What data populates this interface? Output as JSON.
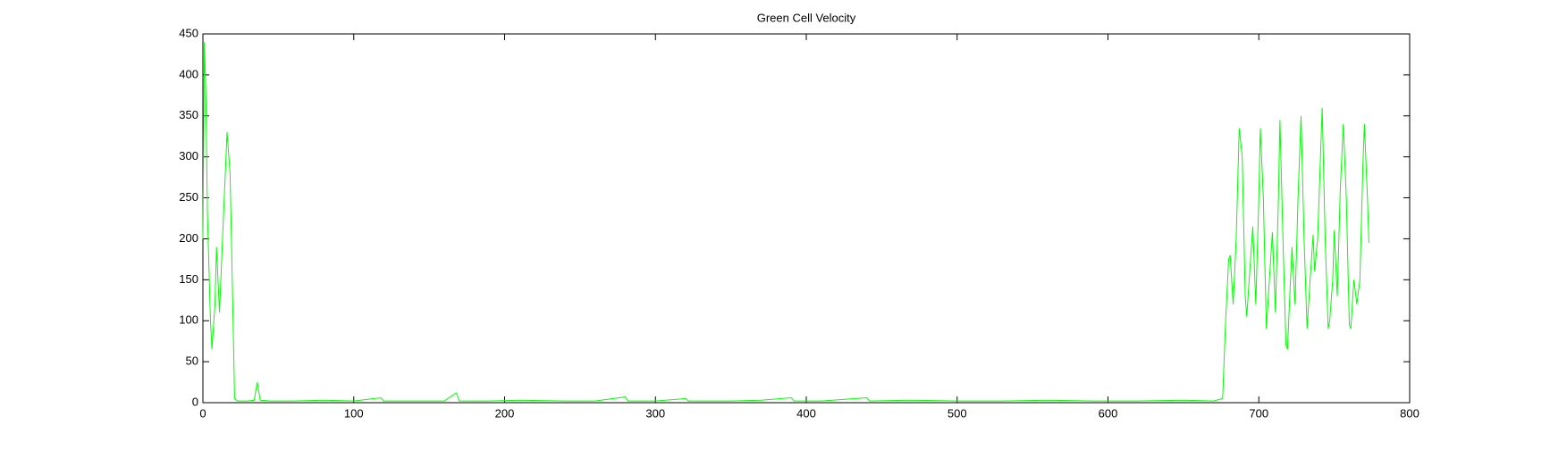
{
  "chart_data": {
    "type": "line",
    "title": "Green Cell Velocity",
    "x": [
      0,
      1,
      2,
      3,
      5,
      6,
      8,
      9,
      11,
      13,
      16,
      18,
      20,
      21,
      23,
      30,
      34,
      36,
      38,
      45,
      60,
      80,
      100,
      118,
      120,
      140,
      160,
      168,
      170,
      190,
      210,
      240,
      260,
      280,
      282,
      300,
      320,
      322,
      350,
      370,
      390,
      392,
      410,
      440,
      442,
      470,
      500,
      530,
      560,
      590,
      620,
      650,
      670,
      676,
      678,
      680,
      681,
      683,
      685,
      687,
      689,
      691,
      692,
      694,
      696,
      698,
      700,
      701,
      703,
      705,
      707,
      709,
      711,
      713,
      714,
      716,
      718,
      719,
      721,
      722,
      724,
      726,
      728,
      730,
      732,
      734,
      736,
      737,
      739,
      742,
      744,
      746,
      747,
      749,
      750,
      752,
      754,
      756,
      758,
      760,
      761,
      763,
      765,
      767,
      769,
      770,
      772,
      773
    ],
    "series": [
      {
        "color": "#00ff00",
        "values": [
          200,
          440,
          370,
          230,
          100,
          65,
          120,
          190,
          110,
          200,
          330,
          280,
          100,
          5,
          2,
          2,
          3,
          25,
          3,
          2,
          2,
          3,
          2,
          6,
          2,
          2,
          2,
          12,
          2,
          2,
          3,
          2,
          2,
          7,
          2,
          2,
          5,
          2,
          2,
          3,
          6,
          2,
          2,
          6,
          2,
          3,
          2,
          2,
          3,
          2,
          2,
          3,
          2,
          5,
          100,
          175,
          180,
          120,
          200,
          335,
          300,
          130,
          105,
          160,
          215,
          120,
          250,
          335,
          250,
          90,
          150,
          208,
          110,
          250,
          345,
          200,
          70,
          65,
          150,
          190,
          120,
          250,
          350,
          200,
          90,
          150,
          205,
          160,
          200,
          360,
          200,
          90,
          100,
          150,
          210,
          130,
          260,
          340,
          250,
          95,
          90,
          150,
          120,
          150,
          290,
          340,
          250,
          195
        ]
      }
    ],
    "xlim": [
      0,
      800
    ],
    "xticks": [
      0,
      100,
      200,
      300,
      400,
      500,
      600,
      700,
      800
    ],
    "ylim": [
      0,
      450
    ],
    "yticks": [
      0,
      50,
      100,
      150,
      200,
      250,
      300,
      350,
      400,
      450
    ]
  }
}
